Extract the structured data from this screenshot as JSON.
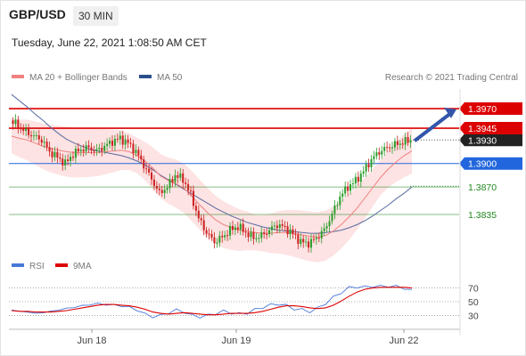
{
  "header": {
    "symbol": "GBP/USD",
    "timeframe": "30 MIN",
    "datetime": "Tuesday, June 22, 2021 1:08:50 AM CET"
  },
  "legend": {
    "ma20": "MA 20 + Bollinger Bands",
    "ma50": "MA 50",
    "copyright": "Research © 2021 Trading Central",
    "rsi": "RSI",
    "ma9": "9MA"
  },
  "colors": {
    "resistance": "#dd0000",
    "support_line": "#2266dd",
    "pivot": "#2266dd",
    "target_green": "#228822",
    "ma20": "#f08080",
    "bollinger_fill": "#fde0e0",
    "ma50": "#5a6aa0",
    "candle_up": "#2e9e2e",
    "candle_down": "#cc2222",
    "arrow": "#3355aa",
    "rsi": "#4a78d8",
    "ma9": "#dd0000"
  },
  "chart_data": [
    {
      "type": "candlestick",
      "title": "GBP/USD 30 MIN",
      "x_ticks": [
        "Jun 18",
        "Jun 19",
        "Jun 22"
      ],
      "ylim": [
        1.3785,
        1.3995
      ],
      "levels": [
        {
          "value": 1.397,
          "label": "1.3970",
          "role": "resistance",
          "color": "#dd0000"
        },
        {
          "value": 1.3945,
          "label": "1.3945",
          "role": "resistance",
          "color": "#dd0000"
        },
        {
          "value": 1.39,
          "label": "1.3900",
          "role": "pivot",
          "color": "#2266dd"
        },
        {
          "value": 1.387,
          "label": "1.3870",
          "role": "support",
          "color": "#228822"
        },
        {
          "value": 1.3835,
          "label": "1.3835",
          "role": "support",
          "color": "#228822"
        }
      ],
      "last_price": {
        "value": 1.393,
        "label": "1.3930"
      },
      "expected_direction": "up toward 1.3970",
      "close_approx": [
        1.3955,
        1.3948,
        1.394,
        1.3935,
        1.393,
        1.3915,
        1.3908,
        1.39,
        1.3912,
        1.3918,
        1.392,
        1.3916,
        1.3922,
        1.3928,
        1.3932,
        1.3926,
        1.3915,
        1.3898,
        1.388,
        1.3862,
        1.387,
        1.3885,
        1.388,
        1.386,
        1.383,
        1.3812,
        1.38,
        1.3806,
        1.3815,
        1.382,
        1.3812,
        1.3805,
        1.3808,
        1.3815,
        1.3822,
        1.3818,
        1.381,
        1.38,
        1.3798,
        1.3805,
        1.3815,
        1.3835,
        1.3858,
        1.387,
        1.3878,
        1.389,
        1.3905,
        1.3915,
        1.392,
        1.3924,
        1.3927,
        1.393
      ],
      "ma20_approx": [
        1.3935,
        1.3932,
        1.393,
        1.3926,
        1.3922,
        1.3919,
        1.3917,
        1.3915,
        1.3914,
        1.3914,
        1.3914,
        1.3914,
        1.3915,
        1.3916,
        1.3917,
        1.3915,
        1.391,
        1.3903,
        1.3894,
        1.3884,
        1.3878,
        1.3874,
        1.3868,
        1.3858,
        1.3847,
        1.3837,
        1.3828,
        1.3822,
        1.3818,
        1.3815,
        1.3814,
        1.3812,
        1.3811,
        1.3811,
        1.3812,
        1.3812,
        1.3811,
        1.3809,
        1.3807,
        1.3806,
        1.3808,
        1.3814,
        1.3822,
        1.3832,
        1.3843,
        1.3856,
        1.3869,
        1.3882,
        1.3893,
        1.3902,
        1.391,
        1.3916
      ],
      "ma50_approx": [
        1.3988,
        1.398,
        1.3972,
        1.3963,
        1.3955,
        1.3946,
        1.3938,
        1.3931,
        1.3926,
        1.3922,
        1.3918,
        1.3916,
        1.3914,
        1.3912,
        1.391,
        1.3907,
        1.3903,
        1.3898,
        1.3892,
        1.3885,
        1.3879,
        1.3873,
        1.3867,
        1.3861,
        1.3855,
        1.3849,
        1.3843,
        1.3838,
        1.3833,
        1.3829,
        1.3825,
        1.3822,
        1.3819,
        1.3817,
        1.3815,
        1.3814,
        1.3813,
        1.3812,
        1.3811,
        1.3811,
        1.3812,
        1.3813,
        1.3815,
        1.3818,
        1.3822,
        1.3827,
        1.3833,
        1.384,
        1.3847,
        1.3855,
        1.3862,
        1.387
      ]
    },
    {
      "type": "line",
      "title": "RSI",
      "y_ticks": [
        70,
        50,
        30
      ],
      "ylim": [
        15,
        85
      ],
      "series": [
        {
          "name": "RSI",
          "color": "#4a78d8",
          "values": [
            38,
            36,
            35,
            33,
            34,
            36,
            38,
            40,
            42,
            44,
            46,
            47,
            46,
            45,
            44,
            42,
            38,
            32,
            28,
            30,
            34,
            38,
            35,
            30,
            28,
            30,
            33,
            36,
            34,
            32,
            34,
            38,
            42,
            45,
            47,
            44,
            40,
            38,
            36,
            40,
            48,
            56,
            64,
            70,
            72,
            71,
            73,
            72,
            73,
            72,
            70,
            66
          ]
        },
        {
          "name": "9MA",
          "color": "#dd0000",
          "values": [
            37,
            36,
            36,
            35,
            35,
            35,
            36,
            37,
            39,
            41,
            43,
            45,
            46,
            46,
            45,
            44,
            42,
            39,
            35,
            33,
            32,
            33,
            34,
            33,
            32,
            31,
            31,
            32,
            33,
            33,
            33,
            34,
            36,
            39,
            42,
            44,
            44,
            43,
            41,
            40,
            41,
            45,
            51,
            58,
            64,
            68,
            70,
            71,
            71,
            71,
            71,
            70
          ]
        }
      ]
    }
  ]
}
